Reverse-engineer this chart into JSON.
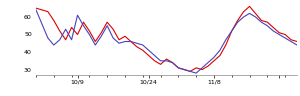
{
  "red": [
    65,
    64,
    63,
    58,
    52,
    47,
    54,
    50,
    57,
    52,
    46,
    51,
    57,
    53,
    47,
    49,
    46,
    43,
    41,
    38,
    35,
    33,
    36,
    34,
    31,
    30,
    29,
    31,
    30,
    32,
    35,
    38,
    44,
    52,
    58,
    63,
    66,
    62,
    58,
    57,
    54,
    51,
    50,
    47,
    46
  ],
  "blue": [
    64,
    56,
    48,
    44,
    47,
    53,
    47,
    61,
    55,
    50,
    44,
    49,
    55,
    48,
    45,
    46,
    46,
    45,
    44,
    41,
    38,
    35,
    35,
    34,
    31,
    30,
    29,
    28,
    31,
    34,
    37,
    41,
    47,
    52,
    57,
    60,
    62,
    60,
    57,
    55,
    52,
    50,
    48,
    46,
    44
  ],
  "ylim": [
    27,
    68
  ],
  "yticks": [
    30,
    40,
    50,
    60
  ],
  "xtick_positions": [
    7,
    19,
    30,
    41
  ],
  "xtick_labels": [
    "10/9",
    "10/24",
    "11/8",
    ""
  ],
  "red_color": "#dd0000",
  "blue_color": "#4444bb",
  "bg_color": "#ffffff",
  "linewidth": 0.8,
  "n_points": 45,
  "minor_xtick_interval": 3
}
